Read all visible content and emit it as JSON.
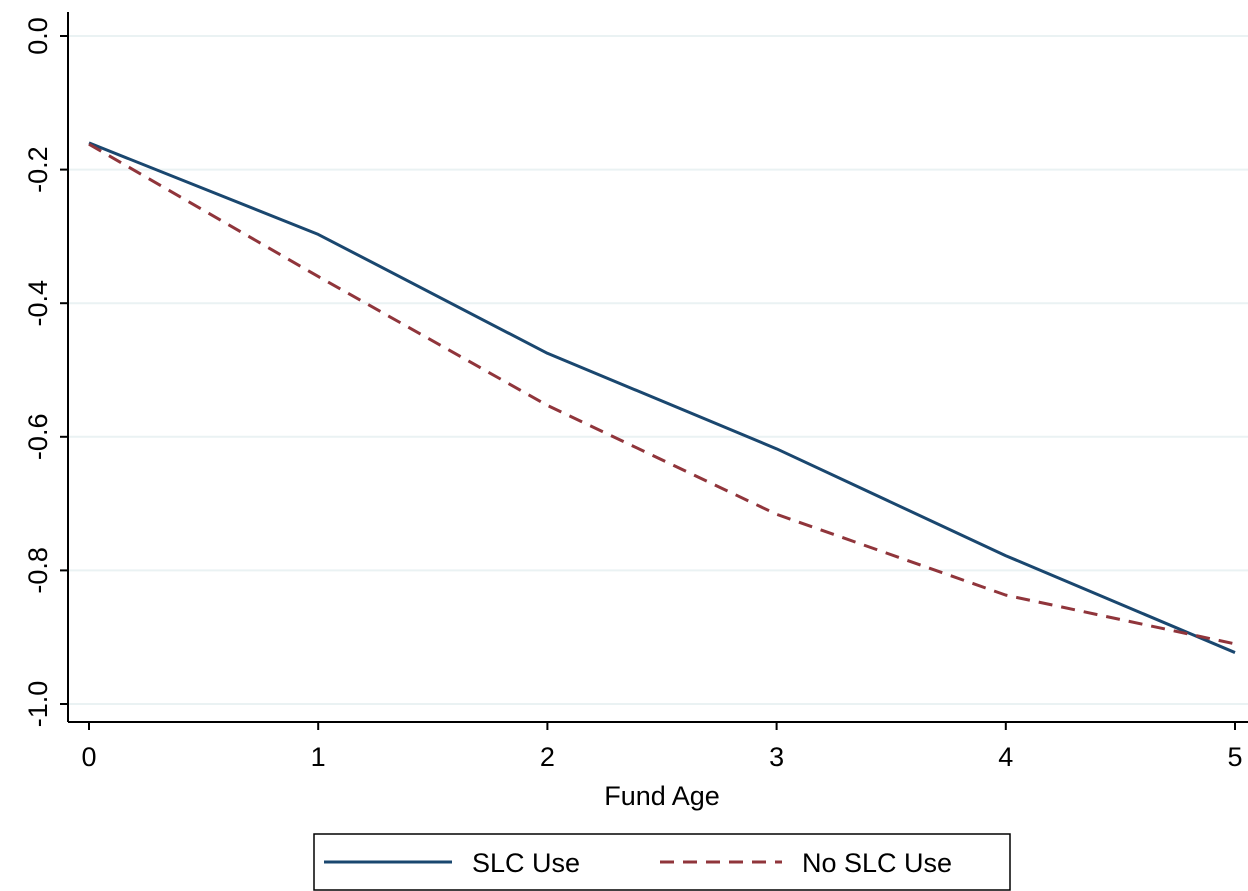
{
  "chart_data": {
    "type": "line",
    "title": "",
    "xlabel": "Fund Age",
    "ylabel": "",
    "x": [
      0,
      1,
      2,
      3,
      4,
      5
    ],
    "xlim": [
      0,
      5
    ],
    "ylim": [
      -1.0,
      0.0
    ],
    "xticks": [
      "0",
      "1",
      "2",
      "3",
      "4",
      "5"
    ],
    "yticks": [
      "0.0",
      "-0.2",
      "-0.4",
      "-0.6",
      "-0.8",
      "-1.0"
    ],
    "ytick_values": [
      0.0,
      -0.2,
      -0.4,
      -0.6,
      -0.8,
      -1.0
    ],
    "grid": true,
    "legend_position": "bottom",
    "series": [
      {
        "name": "SLC Use",
        "values": [
          -0.16,
          -0.297,
          -0.475,
          -0.618,
          -0.778,
          -0.923
        ],
        "color": "#1a476f",
        "style": "solid"
      },
      {
        "name": "No SLC Use",
        "values": [
          -0.162,
          -0.36,
          -0.553,
          -0.716,
          -0.837,
          -0.91
        ],
        "color": "#90353b",
        "style": "dashed"
      }
    ]
  }
}
